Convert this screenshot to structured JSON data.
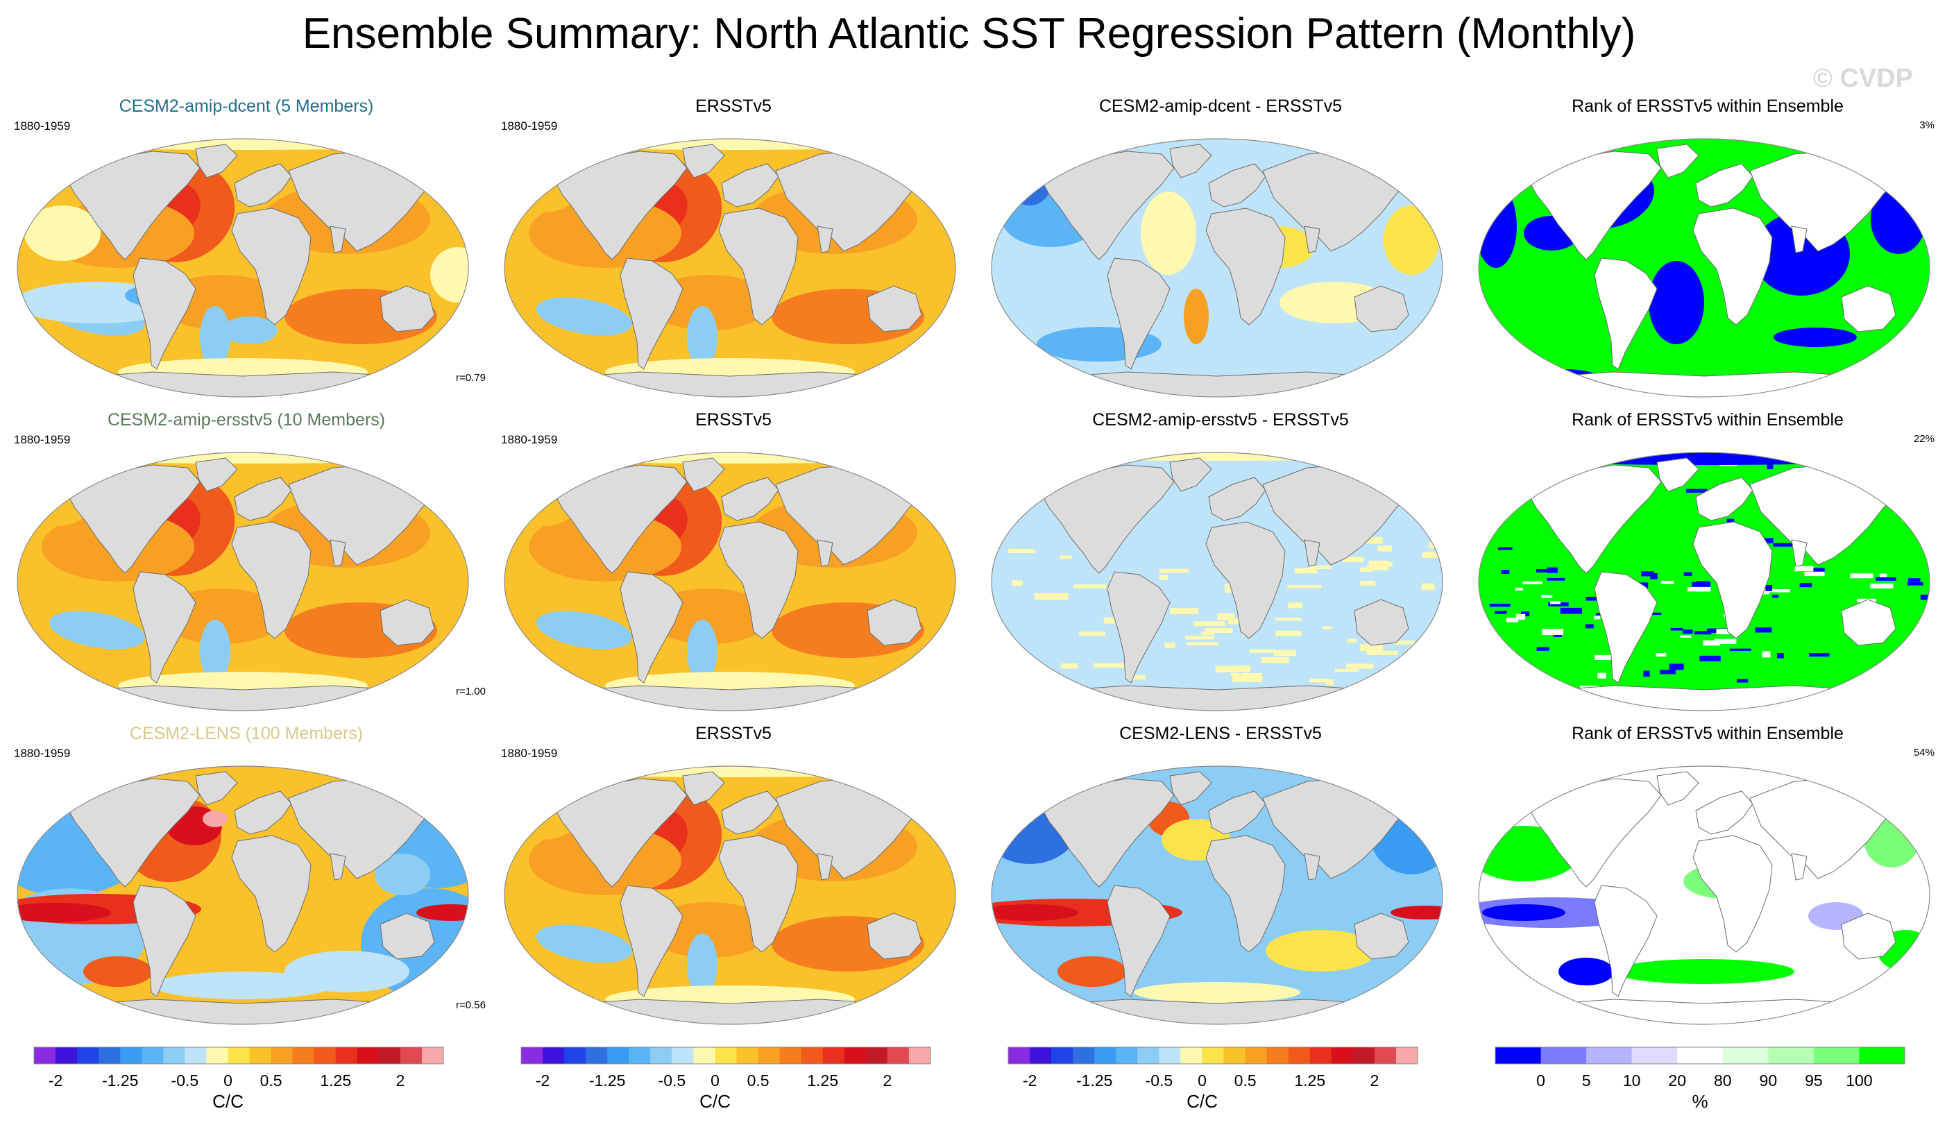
{
  "title": "Ensemble Summary: North Atlantic SST Regression Pattern (Monthly)",
  "watermark": "© CVDP",
  "colors": {
    "land": "#dcdcdc",
    "coast": "#6b6b6b"
  },
  "rows": [
    {
      "model": "CESM2-amip-dcent (5 Members)",
      "model_color": "#1f6f8b",
      "period": "1880-1959",
      "corr": "r=0.79",
      "obs_title": "ERSSTv5",
      "obs_period": "1880-1959",
      "diff_title": "CESM2-amip-dcent - ERSSTv5",
      "rank_title": "Rank of ERSSTv5 within Ensemble",
      "rank_pct": "3%"
    },
    {
      "model": "CESM2-amip-ersstv5 (10 Members)",
      "model_color": "#5a7a5a",
      "period": "1880-1959",
      "corr": "r=1.00",
      "obs_title": "ERSSTv5",
      "obs_period": "1880-1959",
      "diff_title": "CESM2-amip-ersstv5 - ERSSTv5",
      "rank_title": "Rank of ERSSTv5 within Ensemble",
      "rank_pct": "22%"
    },
    {
      "model": "CESM2-LENS (100 Members)",
      "model_color": "#d9c88a",
      "period": "1880-1959",
      "corr": "r=0.56",
      "obs_title": "ERSSTv5",
      "obs_period": "1880-1959",
      "diff_title": "CESM2-LENS - ERSSTv5",
      "rank_title": "Rank of ERSSTv5 within Ensemble",
      "rank_pct": "54%"
    }
  ],
  "chart_data": {
    "type": "heatmap",
    "projection": "global map panels",
    "regression_colorbar": {
      "units": "C/C",
      "tick_labels": [
        "-2",
        "-1.25",
        "-0.5",
        "0",
        "0.5",
        "1.25",
        "2"
      ],
      "colors": [
        "#8a2be2",
        "#3c14dc",
        "#1e46e6",
        "#2f70e0",
        "#3a9cf0",
        "#5ab4f5",
        "#8ccdf5",
        "#bfe3f8",
        "#fff9b0",
        "#fde34a",
        "#fbc12a",
        "#f8a024",
        "#f57d1d",
        "#f05a1a",
        "#e8301c",
        "#d8101c",
        "#c21a2a",
        "#e04a55",
        "#f7a8a8"
      ]
    },
    "rank_colorbar": {
      "units": "%",
      "tick_labels": [
        "0",
        "5",
        "10",
        "20",
        "80",
        "90",
        "95",
        "100"
      ],
      "colors": [
        "#0000ff",
        "#7b7bff",
        "#b5b5ff",
        "#dcdcff",
        "#ffffff",
        "#dcffdc",
        "#b5ffb5",
        "#7bff7b",
        "#00ff00"
      ]
    },
    "panels": [
      {
        "row": 1,
        "col": 1,
        "kind": "regression",
        "pattern_corr": 0.79
      },
      {
        "row": 1,
        "col": 2,
        "kind": "regression"
      },
      {
        "row": 1,
        "col": 3,
        "kind": "difference"
      },
      {
        "row": 1,
        "col": 4,
        "kind": "rank",
        "rank_percent": 3
      },
      {
        "row": 2,
        "col": 1,
        "kind": "regression",
        "pattern_corr": 1.0
      },
      {
        "row": 2,
        "col": 2,
        "kind": "regression"
      },
      {
        "row": 2,
        "col": 3,
        "kind": "difference"
      },
      {
        "row": 2,
        "col": 4,
        "kind": "rank",
        "rank_percent": 22
      },
      {
        "row": 3,
        "col": 1,
        "kind": "regression",
        "pattern_corr": 0.56
      },
      {
        "row": 3,
        "col": 2,
        "kind": "regression"
      },
      {
        "row": 3,
        "col": 3,
        "kind": "difference"
      },
      {
        "row": 3,
        "col": 4,
        "kind": "rank",
        "rank_percent": 54
      }
    ]
  }
}
